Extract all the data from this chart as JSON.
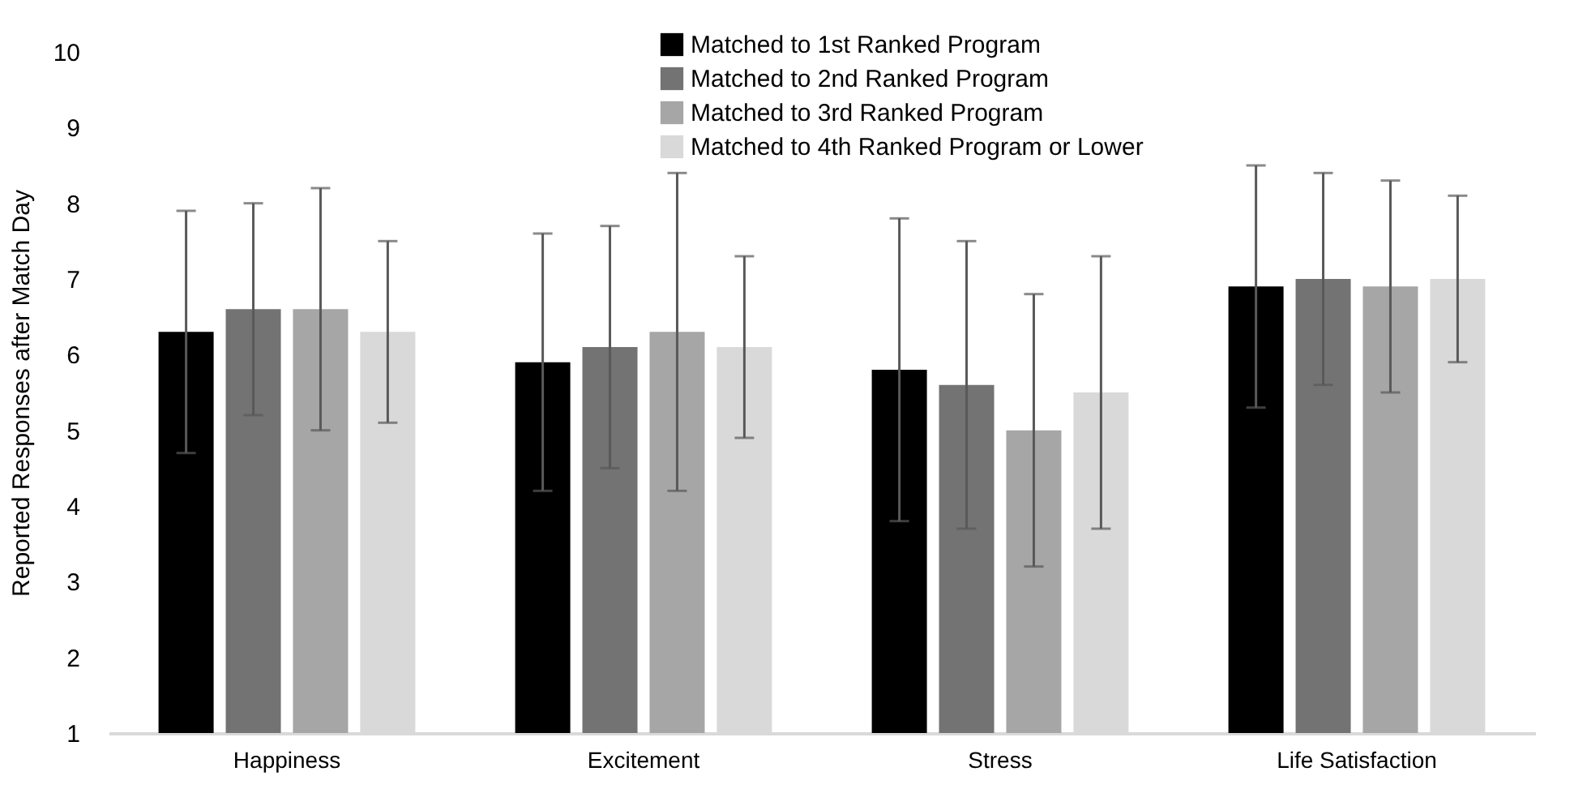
{
  "chart_data": {
    "type": "bar",
    "ylabel": "Reported Responses after Match Day",
    "categories": [
      "Happiness",
      "Excitement",
      "Stress",
      "Life Satisfaction"
    ],
    "series": [
      {
        "name": "Matched to 1st Ranked Program",
        "color": "#000000",
        "values": [
          6.3,
          5.9,
          5.8,
          6.9
        ],
        "errors": [
          [
            4.7,
            7.9
          ],
          [
            4.2,
            7.6
          ],
          [
            3.8,
            7.8
          ],
          [
            5.3,
            8.5
          ]
        ]
      },
      {
        "name": "Matched to 2nd Ranked Program",
        "color": "#737373",
        "values": [
          6.6,
          6.1,
          5.6,
          7.0
        ],
        "errors": [
          [
            5.2,
            8.0
          ],
          [
            4.5,
            7.7
          ],
          [
            3.7,
            7.5
          ],
          [
            5.6,
            8.4
          ]
        ]
      },
      {
        "name": "Matched to 3rd Ranked Program",
        "color": "#a6a6a6",
        "values": [
          6.6,
          6.3,
          5.0,
          6.9
        ],
        "errors": [
          [
            5.0,
            8.2
          ],
          [
            4.2,
            8.4
          ],
          [
            3.2,
            6.8
          ],
          [
            5.5,
            8.3
          ]
        ]
      },
      {
        "name": "Matched to 4th Ranked Program or Lower",
        "color": "#d9d9d9",
        "values": [
          6.3,
          6.1,
          5.5,
          7.0
        ],
        "errors": [
          [
            5.1,
            7.5
          ],
          [
            4.9,
            7.3
          ],
          [
            3.7,
            7.3
          ],
          [
            5.9,
            8.1
          ]
        ]
      }
    ],
    "ylim": [
      1,
      10
    ],
    "yticks": [
      1,
      2,
      3,
      4,
      5,
      6,
      7,
      8,
      9,
      10
    ],
    "grid": false,
    "legend": "top"
  }
}
